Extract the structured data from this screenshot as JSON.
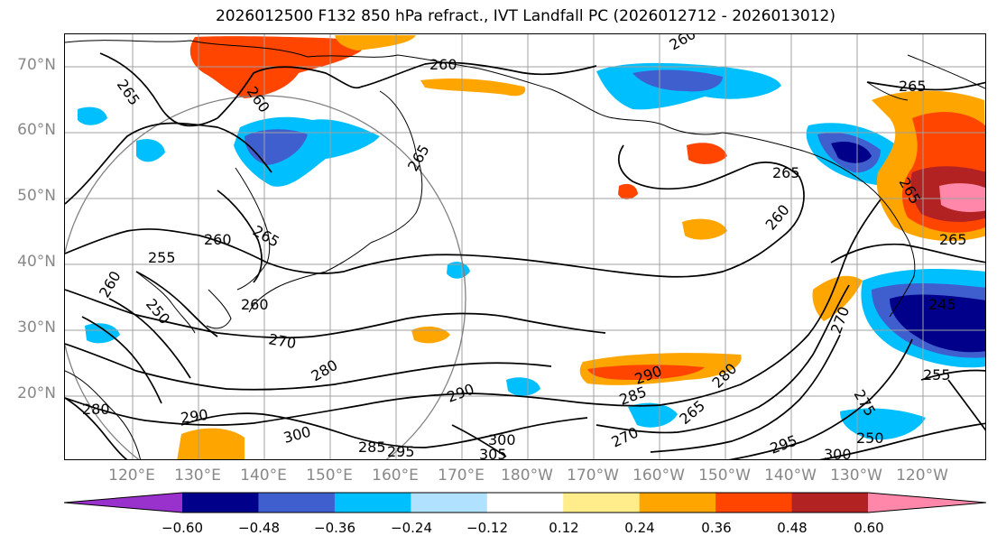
{
  "title": "2026012500 F132 850 hPa refract., IVT Landfall PC (2026012712 - 2026013012)",
  "colors": {
    "axis_label": "#888888",
    "contour": "#000000",
    "graticule": "#a0a0a0",
    "circle": "#808080"
  },
  "lat_labels": [
    "70°N",
    "60°N",
    "50°N",
    "40°N",
    "30°N",
    "20°N"
  ],
  "lon_labels": [
    "120°E",
    "130°E",
    "140°E",
    "150°E",
    "160°E",
    "170°E",
    "180°W",
    "170°W",
    "160°W",
    "150°W",
    "140°W",
    "130°W",
    "120°W"
  ],
  "contour_labels": [
    "265",
    "260",
    "260",
    "260",
    "265",
    "265",
    "260",
    "265",
    "255",
    "260",
    "250",
    "260",
    "270",
    "280",
    "290",
    "290",
    "280",
    "300",
    "285",
    "295",
    "305",
    "300",
    "295",
    "300",
    "265",
    "270",
    "280",
    "285",
    "290",
    "255",
    "245",
    "250",
    "265",
    "265",
    "275",
    "270",
    "265",
    "260"
  ],
  "colorbar": {
    "colors": [
      "#9932cc",
      "#00008b",
      "#3f5fcf",
      "#00bfff",
      "#b0e2ff",
      "#ffffff",
      "#ffec8b",
      "#ffa500",
      "#ff4500",
      "#b22222",
      "#ff88aa"
    ],
    "ticks": [
      "−0.60",
      "−0.48",
      "−0.36",
      "−0.24",
      "−0.12",
      "0.12",
      "0.24",
      "0.36",
      "0.48",
      "0.60"
    ]
  }
}
